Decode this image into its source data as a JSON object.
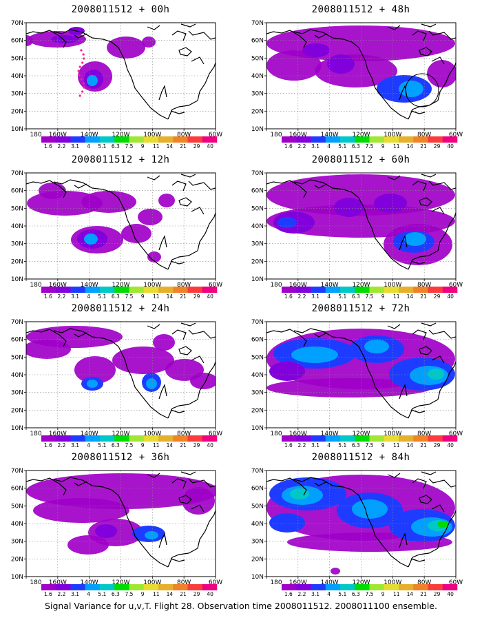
{
  "panels": [
    {
      "title": "2008011512 + 00h"
    },
    {
      "title": "2008011512 + 12h"
    },
    {
      "title": "2008011512 + 24h"
    },
    {
      "title": "2008011512 + 36h"
    },
    {
      "title": "2008011512 + 48h"
    },
    {
      "title": "2008011512 + 60h"
    },
    {
      "title": "2008011512 + 72h"
    },
    {
      "title": "2008011512 + 84h"
    }
  ],
  "lat_labels": [
    "70N",
    "60N",
    "50N",
    "40N",
    "30N",
    "20N",
    "10N"
  ],
  "lon_labels": [
    "180",
    "160W",
    "140W",
    "120W",
    "100W",
    "80W",
    "60W"
  ],
  "colorbar": {
    "labels": [
      "1.6",
      "2.2",
      "3.1",
      "4",
      "5.1",
      "6.3",
      "7.5",
      "9",
      "11",
      "14",
      "21",
      "29",
      "40"
    ],
    "colors": [
      "#a000c8",
      "#8200dc",
      "#1e3cff",
      "#00a0ff",
      "#00c8c8",
      "#00dc00",
      "#a0e632",
      "#e6dc32",
      "#e6af2d",
      "#f08228",
      "#fa3c3c",
      "#f00082"
    ]
  },
  "map_colors": {
    "level1": "#a000c8",
    "level2": "#8200dc",
    "level3": "#1e3cff",
    "level4": "#00a0ff",
    "level5": "#00c8c8",
    "level6": "#00dc00"
  },
  "caption": "Signal Variance for u,v,T. Flight 28. Observation time 2008011512. 2008011100 ensemble."
}
